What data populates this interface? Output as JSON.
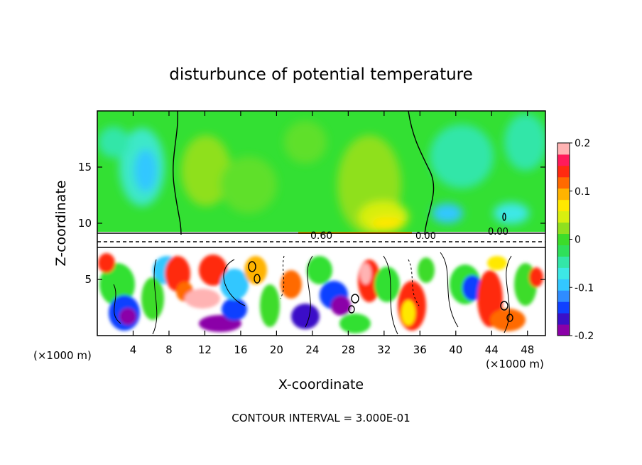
{
  "chart_data": {
    "type": "heatmap",
    "title": "disturbunce of potential temperature",
    "xlabel": "X-coordinate",
    "ylabel": "Z-coordinate",
    "x_unit_label": "(×1000 m)",
    "x_unit_label_right": "(×1000 m)",
    "xlim": [
      0,
      50
    ],
    "ylim": [
      0,
      20
    ],
    "x_ticks": [
      "4",
      "8",
      "12",
      "16",
      "20",
      "24",
      "28",
      "32",
      "36",
      "40",
      "44",
      "48"
    ],
    "y_ticks": [
      "5",
      "10",
      "15"
    ],
    "colorbar": {
      "range": [
        -0.2,
        0.2
      ],
      "tick_labels": [
        "0.2",
        "0.1",
        "0",
        "-0.1",
        "-0.2"
      ],
      "colors": [
        "#8b00a8",
        "#3a10c8",
        "#1040ff",
        "#2f8cff",
        "#33c7ff",
        "#3de8e6",
        "#33e6a8",
        "#2fe05a",
        "#3cdc2a",
        "#8fe01f",
        "#d8ef10",
        "#ffe800",
        "#ffb300",
        "#ff6a00",
        "#ff2a10",
        "#ff1b5a",
        "#ffb3b3"
      ]
    },
    "contour_labels": [
      "0.60",
      "0.00",
      "0.00"
    ],
    "footer": "CONTOUR INTERVAL = 3.000E-01"
  }
}
